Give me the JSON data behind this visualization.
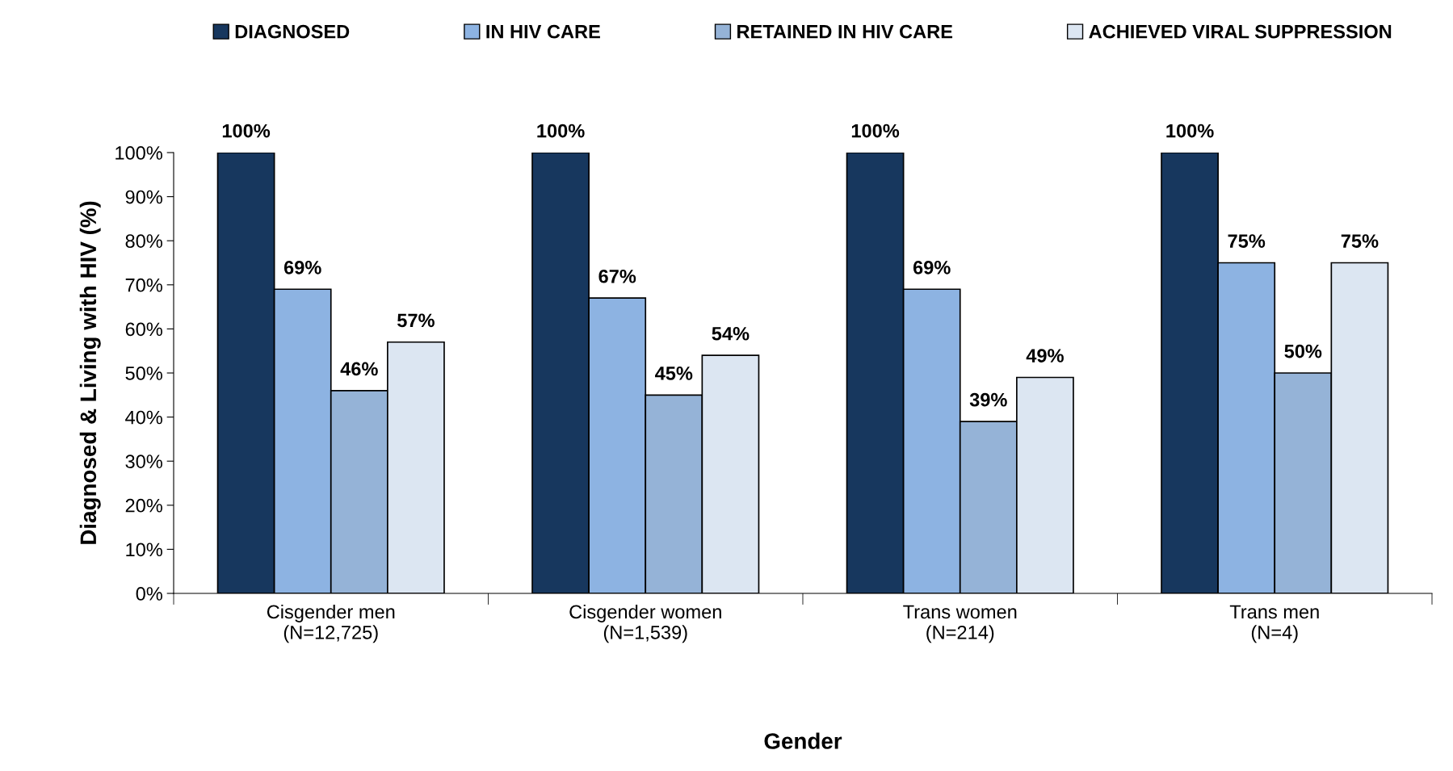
{
  "chart_data": {
    "type": "bar",
    "xlabel": "Gender",
    "ylabel": "Diagnosed & Living with HIV (%)",
    "categories": [
      "Cisgender men\n(N=12,725)",
      "Cisgender women\n(N=1,539)",
      "Trans women\n(N=214)",
      "Trans men\n(N=4)"
    ],
    "series": [
      {
        "name": "DIAGNOSED",
        "color": "#17375e",
        "values": [
          100,
          100,
          100,
          100
        ],
        "value_labels": [
          "100%",
          "100%",
          "100%",
          "100%"
        ]
      },
      {
        "name": "IN HIV CARE",
        "color": "#8db3e2",
        "values": [
          69,
          67,
          69,
          75
        ],
        "value_labels": [
          "69%",
          "67%",
          "69%",
          "75%"
        ]
      },
      {
        "name": "RETAINED IN HIV CARE",
        "color": "#95b3d7",
        "values": [
          46,
          45,
          39,
          50
        ],
        "value_labels": [
          "46%",
          "45%",
          "39%",
          "50%"
        ]
      },
      {
        "name": "ACHIEVED VIRAL SUPPRESSION",
        "color": "#dce6f2",
        "values": [
          57,
          54,
          49,
          75
        ],
        "value_labels": [
          "57%",
          "54%",
          "49%",
          "75%"
        ]
      }
    ],
    "ylim": [
      0,
      100
    ],
    "yticks": [
      {
        "value": 0,
        "label": "0%"
      },
      {
        "value": 10,
        "label": "10%"
      },
      {
        "value": 20,
        "label": "20%"
      },
      {
        "value": 30,
        "label": "30%"
      },
      {
        "value": 40,
        "label": "40%"
      },
      {
        "value": 50,
        "label": "50%"
      },
      {
        "value": 60,
        "label": "60%"
      },
      {
        "value": 70,
        "label": "70%"
      },
      {
        "value": 80,
        "label": "80%"
      },
      {
        "value": 90,
        "label": "90%"
      },
      {
        "value": 100,
        "label": "100%"
      }
    ],
    "grid": false,
    "legend": "top"
  }
}
